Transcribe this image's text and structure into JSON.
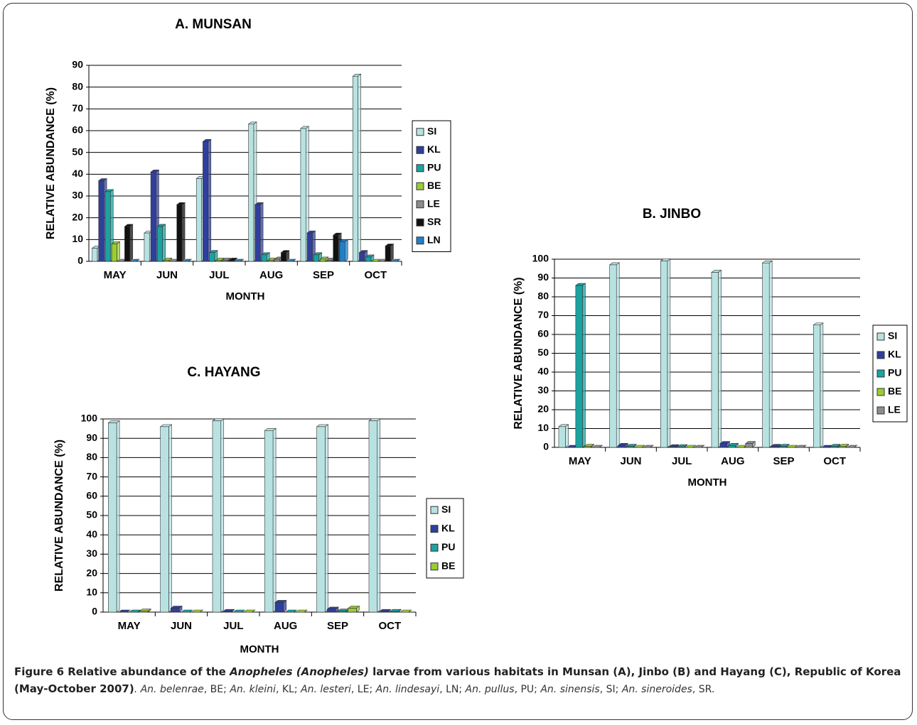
{
  "chart_data": [
    {
      "type": "bar",
      "title": "A. MUNSAN",
      "x_label": "MONTH",
      "y_label": "RELATIVE ABUNDANCE (%)",
      "categories": [
        "MAY",
        "JUN",
        "JUL",
        "AUG",
        "SEP",
        "OCT"
      ],
      "series": [
        {
          "name": "SI",
          "color": "#b8e2e2",
          "values": [
            6,
            13,
            38,
            63,
            61,
            85
          ]
        },
        {
          "name": "KL",
          "color": "#2f3f9c",
          "values": [
            37,
            41,
            55,
            26,
            13,
            4
          ]
        },
        {
          "name": "PU",
          "color": "#1aa3a0",
          "values": [
            32,
            16,
            4,
            3,
            3,
            2
          ]
        },
        {
          "name": "BE",
          "color": "#9acd32",
          "values": [
            8,
            0.5,
            0.5,
            0.5,
            1,
            0
          ]
        },
        {
          "name": "LE",
          "color": "#8c8c8c",
          "values": [
            0,
            0,
            0.5,
            1,
            0.5,
            0
          ]
        },
        {
          "name": "SR",
          "color": "#111111",
          "values": [
            16,
            26,
            0.5,
            4,
            12,
            7
          ]
        },
        {
          "name": "LN",
          "color": "#1f80c8",
          "values": [
            0,
            0,
            0,
            0,
            9,
            0
          ]
        }
      ],
      "ylim": [
        0,
        90
      ],
      "yticks": [
        0,
        10,
        20,
        30,
        40,
        50,
        60,
        70,
        80,
        90
      ],
      "grid": true
    },
    {
      "type": "bar",
      "title": "B. JINBO",
      "x_label": "MONTH",
      "y_label": "RELATIVE ABUNDANCE (%)",
      "categories": [
        "MAY",
        "JUN",
        "JUL",
        "AUG",
        "SEP",
        "OCT"
      ],
      "series": [
        {
          "name": "SI",
          "color": "#b8e2e2",
          "values": [
            11,
            97,
            99,
            93,
            98,
            65
          ]
        },
        {
          "name": "KL",
          "color": "#2f3f9c",
          "values": [
            0,
            1,
            0.3,
            2,
            0.5,
            0
          ]
        },
        {
          "name": "PU",
          "color": "#1aa3a0",
          "values": [
            86,
            0.5,
            0.3,
            1,
            0.5,
            0.5
          ]
        },
        {
          "name": "BE",
          "color": "#9acd32",
          "values": [
            0.5,
            0,
            0,
            0,
            0,
            0.5
          ]
        },
        {
          "name": "LE",
          "color": "#8c8c8c",
          "values": [
            0,
            0,
            0,
            2,
            0,
            0
          ]
        }
      ],
      "ylim": [
        0,
        100
      ],
      "yticks": [
        0,
        10,
        20,
        30,
        40,
        50,
        60,
        70,
        80,
        90,
        100
      ],
      "grid": true
    },
    {
      "type": "bar",
      "title": "C. HAYANG",
      "x_label": "MONTH",
      "y_label": "RELATIVE ABUNDANCE (%)",
      "categories": [
        "MAY",
        "JUN",
        "JUL",
        "AUG",
        "SEP",
        "OCT"
      ],
      "series": [
        {
          "name": "SI",
          "color": "#b8e2e2",
          "values": [
            98,
            96,
            99,
            94,
            96,
            99
          ]
        },
        {
          "name": "KL",
          "color": "#2f3f9c",
          "values": [
            0,
            2,
            0.3,
            5,
            1.5,
            0.3
          ]
        },
        {
          "name": "PU",
          "color": "#1aa3a0",
          "values": [
            0,
            0,
            0,
            0,
            0.5,
            0.3
          ]
        },
        {
          "name": "BE",
          "color": "#9acd32",
          "values": [
            0.5,
            0,
            0,
            0,
            2,
            0
          ]
        }
      ],
      "ylim": [
        0,
        100
      ],
      "yticks": [
        0,
        10,
        20,
        30,
        40,
        50,
        60,
        70,
        80,
        90,
        100
      ],
      "grid": true
    }
  ],
  "caption": {
    "segments": [
      {
        "text": "Figure 6 Relative abundance of the ",
        "style": "bold"
      },
      {
        "text": "Anopheles (Anopheles)",
        "style": "bold-italic"
      },
      {
        "text": " larvae from various habitats in Munsan (A), Jinbo (B) and Hayang (C), Republic of Korea (May-October 2007)",
        "style": "bold"
      },
      {
        "text": ". An. belenrae",
        "style": "italic"
      },
      {
        "text": ", BE; ",
        "style": "normal"
      },
      {
        "text": "An. kleini",
        "style": "italic"
      },
      {
        "text": ", KL; ",
        "style": "normal"
      },
      {
        "text": "An. lesteri",
        "style": "italic"
      },
      {
        "text": ", LE; ",
        "style": "normal"
      },
      {
        "text": "An. lindesayi",
        "style": "italic"
      },
      {
        "text": ", LN; ",
        "style": "normal"
      },
      {
        "text": "An. pullus",
        "style": "italic"
      },
      {
        "text": ", PU; ",
        "style": "normal"
      },
      {
        "text": "An. sinensis",
        "style": "italic"
      },
      {
        "text": ", SI; ",
        "style": "normal"
      },
      {
        "text": "An. sineroides",
        "style": "italic"
      },
      {
        "text": ", SR.",
        "style": "normal"
      }
    ]
  }
}
